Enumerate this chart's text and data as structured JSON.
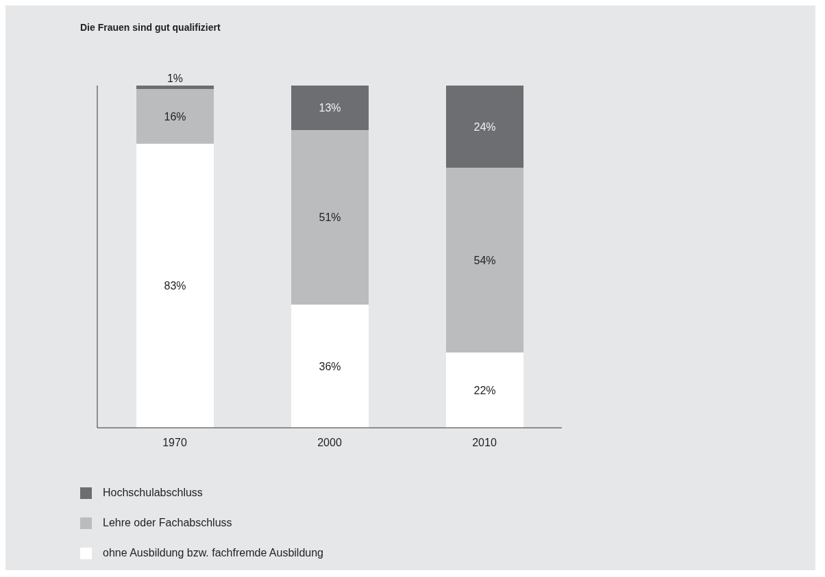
{
  "chart_data": {
    "type": "bar",
    "title": "Die Frauen sind gut qualifiziert",
    "categories": [
      "1970",
      "2000",
      "2010"
    ],
    "stacked": true,
    "tick_labels": "x",
    "grid": false,
    "legend": "bottom",
    "series": [
      {
        "name": "ohne Ausbildung bzw. fachfremde Ausbildung",
        "color": "#ffffff",
        "values": [
          83,
          36,
          22
        ],
        "value_labels": [
          "83%",
          "36%",
          "22%"
        ]
      },
      {
        "name": "Lehre oder Fachabschluss",
        "color": "#bbbcbe",
        "values": [
          16,
          51,
          54
        ],
        "value_labels": [
          "16%",
          "51%",
          "54%"
        ]
      },
      {
        "name": "Hochschulabschluss",
        "color": "#6d6e71",
        "values": [
          1,
          13,
          24
        ],
        "value_labels": [
          "1%",
          "13%",
          "24%"
        ]
      }
    ]
  }
}
